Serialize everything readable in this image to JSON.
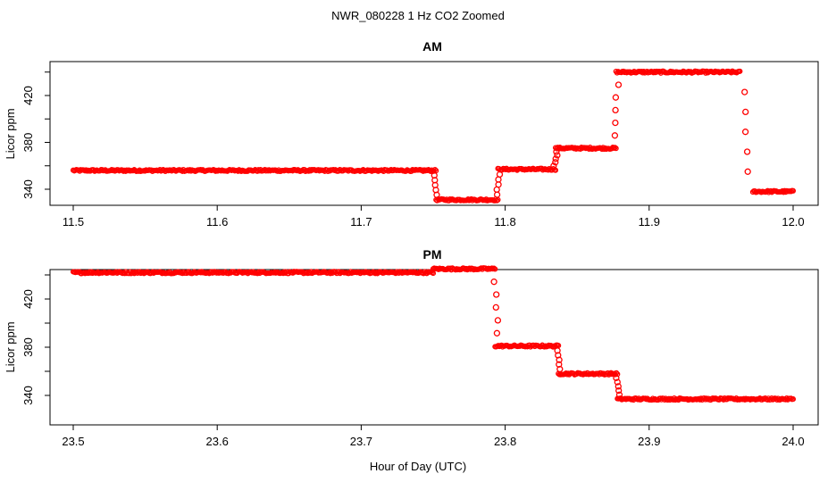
{
  "figure": {
    "title": "NWR_080228  1 Hz CO2 Zoomed",
    "xlabel": "Hour of Day (UTC)"
  },
  "colors": {
    "points": "#ff0000",
    "axis": "#000000",
    "background": "#ffffff"
  },
  "chart_data": [
    {
      "type": "scatter",
      "title": "AM",
      "xlabel": "",
      "ylabel": "Licor ppm",
      "xlim": [
        11.5,
        12.0
      ],
      "ylim": [
        328,
        448
      ],
      "xticks": [
        "11.5",
        "11.6",
        "11.7",
        "11.8",
        "11.9",
        "12.0"
      ],
      "yticks": [
        "340",
        "380",
        "420"
      ],
      "grid": false,
      "series": [
        {
          "marker": "open-circle",
          "levels": [
            {
              "x": [
                11.5,
                11.752
              ],
              "y": 356
            },
            {
              "x": [
                11.752,
                11.795
              ],
              "y": 331
            },
            {
              "x": [
                11.795,
                11.835
              ],
              "y": 357
            },
            {
              "x": [
                11.835,
                11.877
              ],
              "y": 375
            },
            {
              "x": [
                11.877,
                11.963
              ],
              "y": 440
            },
            {
              "x": [
                11.972,
                12.0
              ],
              "y": 338
            }
          ],
          "transitions": [
            {
              "x": 11.752,
              "y": [
                356,
                331
              ]
            },
            {
              "x": 11.795,
              "y": [
                331,
                357
              ]
            },
            {
              "x": 11.835,
              "y": [
                357,
                375
              ]
            },
            {
              "x": 11.877,
              "y": [
                375,
                440
              ]
            },
            {
              "x": 11.967,
              "y": [
                440,
                338
              ]
            }
          ]
        }
      ]
    },
    {
      "type": "scatter",
      "title": "PM",
      "xlabel": "Hour of Day (UTC)",
      "ylabel": "Licor ppm",
      "xlim": [
        23.5,
        24.0
      ],
      "ylim": [
        328,
        448
      ],
      "xticks": [
        "23.5",
        "23.6",
        "23.7",
        "23.8",
        "23.9",
        "24.0"
      ],
      "yticks": [
        "340",
        "380",
        "420"
      ],
      "grid": false,
      "series": [
        {
          "marker": "open-circle",
          "levels": [
            {
              "x": [
                23.5,
                23.75
              ],
              "y": 442
            },
            {
              "x": [
                23.75,
                23.793
              ],
              "y": 445
            },
            {
              "x": [
                23.793,
                23.837
              ],
              "y": 381
            },
            {
              "x": [
                23.837,
                23.878
              ],
              "y": 358
            },
            {
              "x": [
                23.878,
                24.0
              ],
              "y": 337
            }
          ],
          "transitions": [
            {
              "x": 23.794,
              "y": [
                445,
                381
              ]
            },
            {
              "x": 23.837,
              "y": [
                381,
                358
              ]
            },
            {
              "x": 23.878,
              "y": [
                358,
                337
              ]
            }
          ]
        }
      ]
    }
  ]
}
